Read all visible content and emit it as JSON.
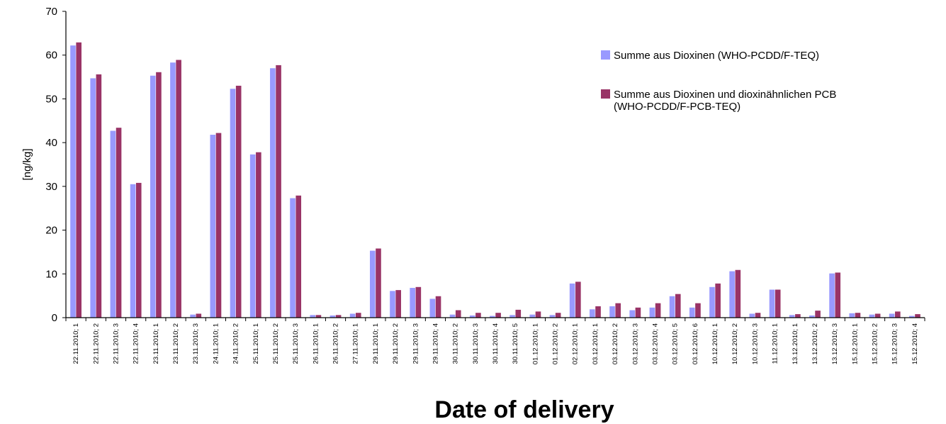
{
  "chart_data": {
    "type": "bar",
    "xlabel": "Date of delivery",
    "ylabel": "[ng/kg]",
    "ylim": [
      0,
      70
    ],
    "yticks": [
      0,
      10,
      20,
      30,
      40,
      50,
      60,
      70
    ],
    "grid": false,
    "legend_position": "top-right",
    "categories": [
      "22.11.2010; 1",
      "22.11.2010; 2",
      "22.11.2010; 3",
      "22.11.2010; 4",
      "23.11.2010; 1",
      "23.11.2010; 2",
      "23.11.2010; 3",
      "24.11.2010; 1",
      "24.11.2010; 2",
      "25.11.2010; 1",
      "25.11.2010; 2",
      "25.11.2010; 3",
      "26.11.2010; 1",
      "26.11.2010; 2",
      "27.11.2010; 1",
      "29.11.2010; 1",
      "29.11.2010; 2",
      "29.11.2010; 3",
      "29.11.2010; 4",
      "30.11.2010; 2",
      "30.11.2010; 3",
      "30.11.2010; 4",
      "30.11.2010; 5",
      "01.12.2010; 1",
      "01.12.2010; 2",
      "02.12.2010; 1",
      "03.12.2010; 1",
      "03.12.2010; 2",
      "03.12.2010; 3",
      "03.12.2010; 4",
      "03.12.2010; 5",
      "03.12.2010; 6",
      "10.12.2010; 1",
      "10.12.2010; 2",
      "10.12.2010; 3",
      "11.12.2010; 1",
      "13.12.2010; 1",
      "13.12.2010; 2",
      "13.12.2010; 3",
      "15.12.2010; 1",
      "15.12.2010; 2",
      "15.12.2010; 3",
      "15.12.2010; 4"
    ],
    "series": [
      {
        "name": "Summe aus Dioxinen (WHO-PCDD/F-TEQ)",
        "color": "#9999ff",
        "values": [
          62.2,
          54.7,
          42.7,
          30.5,
          55.3,
          58.3,
          0.7,
          41.8,
          52.3,
          37.3,
          57.0,
          27.3,
          0.6,
          0.5,
          0.9,
          15.3,
          6.1,
          6.8,
          4.3,
          0.7,
          0.5,
          0.4,
          0.6,
          0.7,
          0.6,
          7.8,
          1.9,
          2.6,
          1.7,
          2.3,
          4.9,
          2.3,
          7.0,
          10.6,
          0.9,
          6.4,
          0.6,
          0.5,
          10.1,
          1.0,
          0.7,
          0.9,
          0.4
        ]
      },
      {
        "name": "Summe aus Dioxinen und dioxinähnlichen PCB (WHO-PCDD/F-PCB-TEQ)",
        "name_lines": [
          "Summe aus Dioxinen und dioxinähnlichen PCB",
          "(WHO-PCDD/F-PCB-TEQ)"
        ],
        "color": "#993366",
        "values": [
          62.9,
          55.6,
          43.4,
          30.8,
          56.1,
          58.9,
          0.9,
          42.2,
          53.0,
          37.8,
          57.7,
          27.9,
          0.6,
          0.6,
          1.1,
          15.8,
          6.3,
          7.0,
          4.9,
          1.7,
          1.1,
          1.1,
          1.8,
          1.4,
          1.1,
          8.2,
          2.6,
          3.3,
          2.3,
          3.3,
          5.4,
          3.3,
          7.8,
          10.9,
          1.1,
          6.4,
          0.8,
          1.6,
          10.3,
          1.1,
          0.9,
          1.4,
          0.8
        ]
      }
    ]
  }
}
